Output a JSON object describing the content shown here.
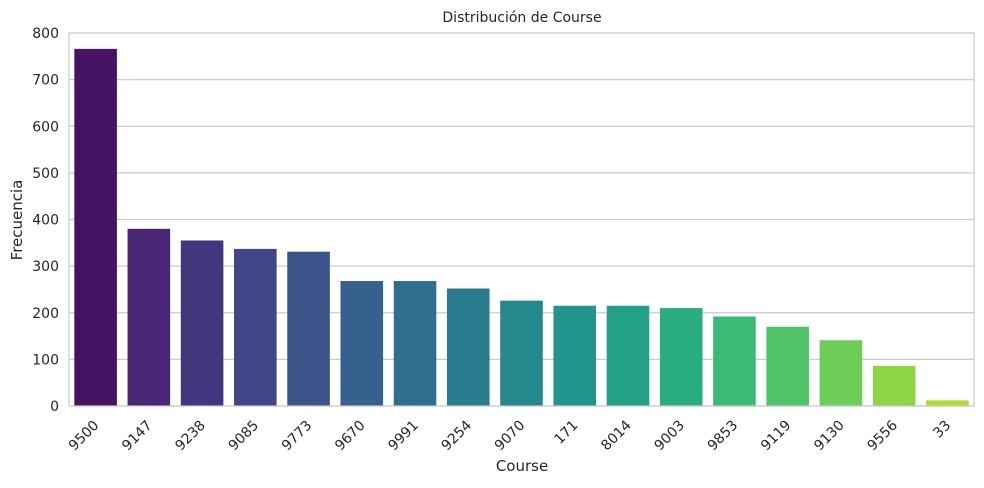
{
  "chart_data": {
    "type": "bar",
    "title": "Distribución de Course",
    "xlabel": "Course",
    "ylabel": "Frecuencia",
    "categories": [
      "9500",
      "9147",
      "9238",
      "9085",
      "9773",
      "9670",
      "9991",
      "9254",
      "9070",
      "171",
      "8014",
      "9003",
      "9853",
      "9119",
      "9130",
      "9556",
      "33"
    ],
    "values": [
      766,
      380,
      355,
      337,
      331,
      268,
      268,
      252,
      226,
      215,
      215,
      210,
      192,
      170,
      141,
      86,
      12
    ],
    "ylim": [
      0,
      800
    ],
    "yticks": [
      0,
      100,
      200,
      300,
      400,
      500,
      600,
      700,
      800
    ],
    "grid": true,
    "colormap": "viridis",
    "colors": [
      "#440154",
      "#482475",
      "#414487",
      "#355f8d",
      "#2a788e",
      "#21918c",
      "#22a884",
      "#44bf70",
      "#7ad151",
      "#bddf26",
      "#fde725"
    ]
  }
}
